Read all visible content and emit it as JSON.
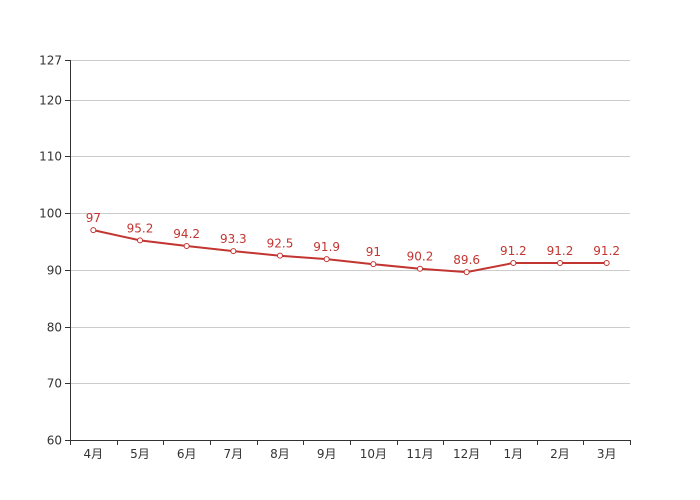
{
  "chart_data": {
    "type": "line",
    "title": "",
    "xlabel": "",
    "ylabel": "",
    "categories": [
      "4月",
      "5月",
      "6月",
      "7月",
      "8月",
      "9月",
      "10月",
      "11月",
      "12月",
      "1月",
      "2月",
      "3月"
    ],
    "series": [
      {
        "values": [
          97,
          95.2,
          94.2,
          93.3,
          92.5,
          91.9,
          91,
          90.2,
          89.6,
          91.2,
          91.2,
          91.2
        ]
      }
    ],
    "ylim": [
      60,
      127
    ],
    "yticks": [
      60,
      70,
      80,
      90,
      100,
      110,
      120,
      127
    ],
    "grid": true,
    "data_labels": true,
    "colors": {
      "line": "#c23531",
      "grid": "#cccccc",
      "axis": "#333333"
    }
  }
}
